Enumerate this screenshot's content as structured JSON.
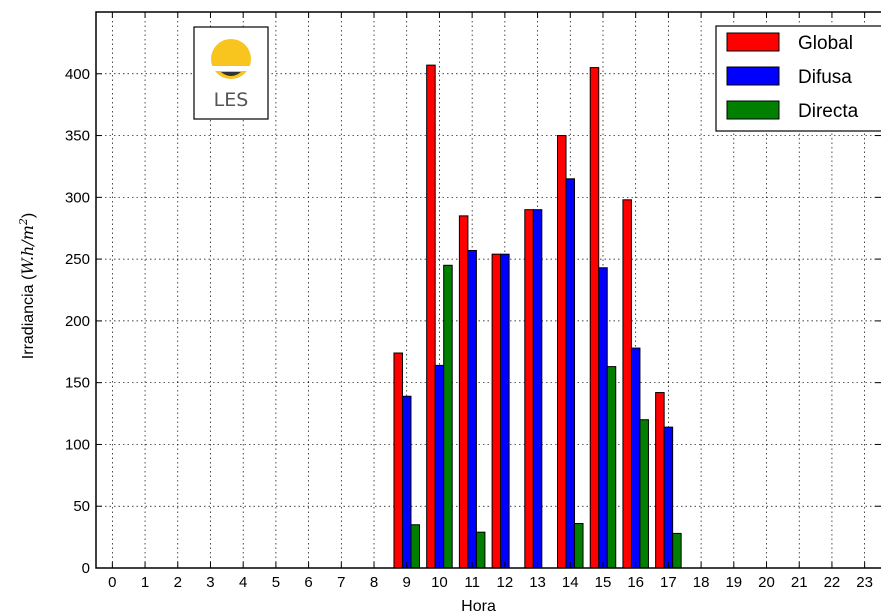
{
  "chart_data": {
    "type": "bar",
    "xlabel": "Hora",
    "ylabel_prefix": "Irradiancia (",
    "ylabel_unit_main": "W.h/m",
    "ylabel_unit_exp": "2",
    "ylabel_suffix": ")",
    "categories": [
      "0",
      "1",
      "2",
      "3",
      "4",
      "5",
      "6",
      "7",
      "8",
      "9",
      "10",
      "11",
      "12",
      "13",
      "14",
      "15",
      "16",
      "17",
      "18",
      "19",
      "20",
      "21",
      "22",
      "23"
    ],
    "ylim": [
      0,
      450
    ],
    "yticks": [
      0,
      50,
      100,
      150,
      200,
      250,
      300,
      350,
      400
    ],
    "grid": true,
    "legend_position": "top-right",
    "series": [
      {
        "name": "Global",
        "color": "#ff0000",
        "values": [
          0,
          0,
          0,
          0,
          0,
          0,
          0,
          0,
          0,
          174,
          407,
          285,
          254,
          290,
          350,
          405,
          298,
          142,
          0,
          0,
          0,
          0,
          0,
          0
        ]
      },
      {
        "name": "Difusa",
        "color": "#0000ff",
        "values": [
          0,
          0,
          0,
          0,
          0,
          0,
          0,
          0,
          0,
          139,
          164,
          257,
          254,
          290,
          315,
          243,
          178,
          114,
          0,
          0,
          0,
          0,
          0,
          0
        ]
      },
      {
        "name": "Directa",
        "color": "#007f00",
        "values": [
          0,
          0,
          0,
          0,
          0,
          0,
          0,
          0,
          0,
          35,
          245,
          29,
          0,
          0,
          36,
          163,
          120,
          28,
          0,
          0,
          0,
          0,
          0,
          0
        ]
      }
    ]
  },
  "logo": {
    "text": "LES",
    "sun_color": "#f7c51e",
    "text_color": "#555555"
  }
}
